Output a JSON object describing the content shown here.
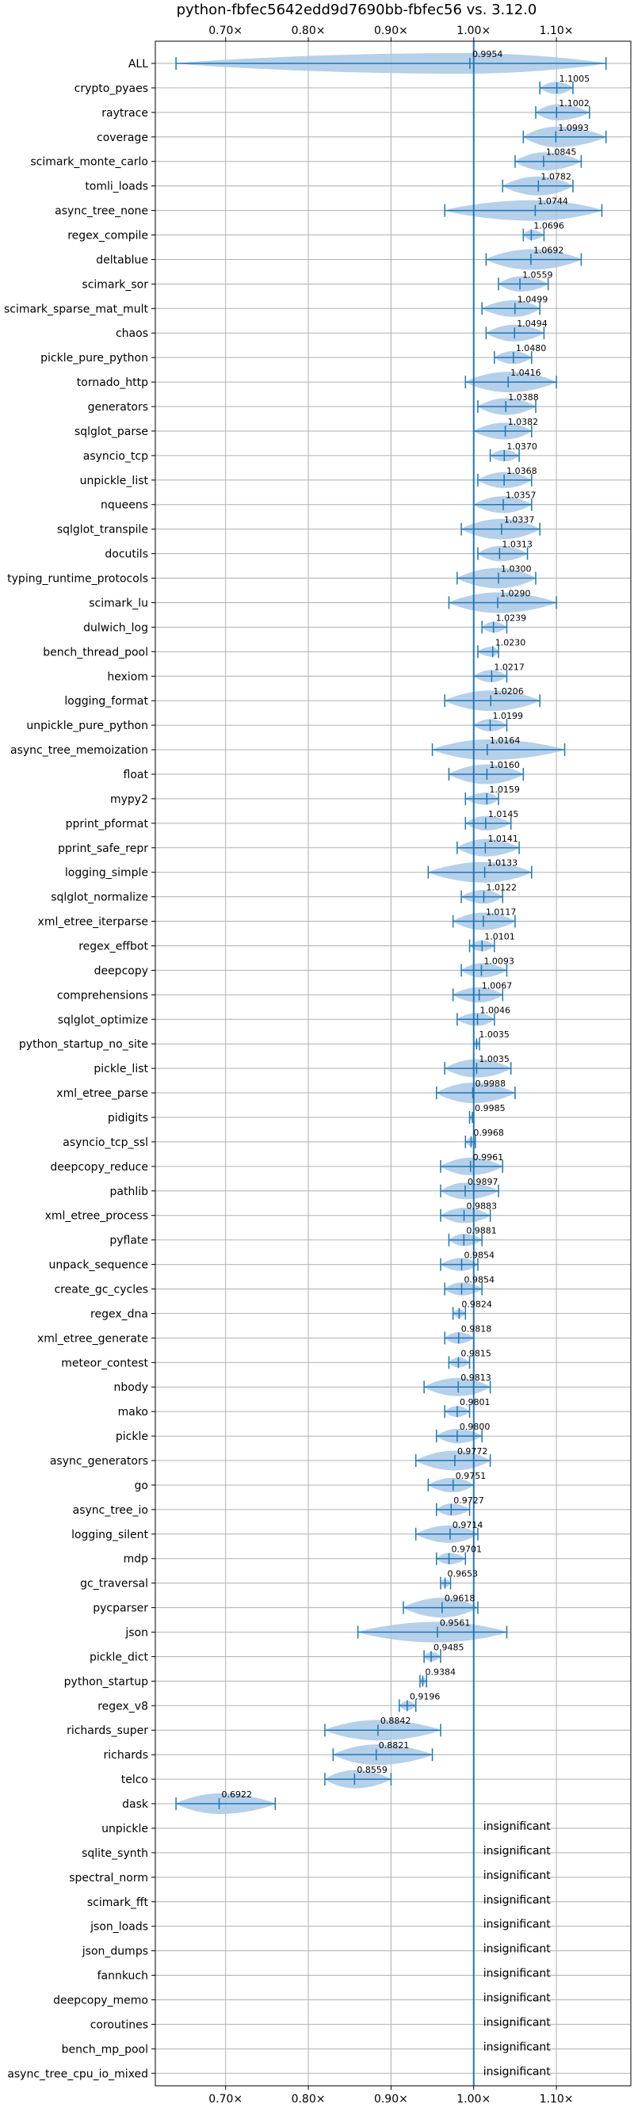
{
  "chart_data": {
    "type": "violin",
    "title": "python-fbfec5642edd9d7690bb-fbfec56 vs. 3.12.0",
    "xlim": [
      0.615,
      1.19
    ],
    "xticks": [
      0.7,
      0.8,
      0.9,
      1.0,
      1.1
    ],
    "xtick_labels": [
      "0.70×",
      "0.80×",
      "0.90×",
      "1.00×",
      "1.10×"
    ],
    "grid": true,
    "reference_line": 1.0,
    "colors": {
      "violin": "#a9c8e6",
      "line": "#1f77b4"
    },
    "insignificant_text": "insignificant",
    "benchmarks": [
      {
        "name": "ALL",
        "value": 0.9954,
        "label": "0.9954",
        "min": 0.64,
        "max": 1.16
      },
      {
        "name": "crypto_pyaes",
        "value": 1.1005,
        "label": "1.1005",
        "min": 1.08,
        "max": 1.12
      },
      {
        "name": "raytrace",
        "value": 1.1002,
        "label": "1.1002",
        "min": 1.075,
        "max": 1.14
      },
      {
        "name": "coverage",
        "value": 1.0993,
        "label": "1.0993",
        "min": 1.06,
        "max": 1.16
      },
      {
        "name": "scimark_monte_carlo",
        "value": 1.0845,
        "label": "1.0845",
        "min": 1.05,
        "max": 1.13
      },
      {
        "name": "tomli_loads",
        "value": 1.0782,
        "label": "1.0782",
        "min": 1.035,
        "max": 1.12
      },
      {
        "name": "async_tree_none",
        "value": 1.0744,
        "label": "1.0744",
        "min": 0.965,
        "max": 1.155
      },
      {
        "name": "regex_compile",
        "value": 1.0696,
        "label": "1.0696",
        "min": 1.06,
        "max": 1.085
      },
      {
        "name": "deltablue",
        "value": 1.0692,
        "label": "1.0692",
        "min": 1.015,
        "max": 1.13
      },
      {
        "name": "scimark_sor",
        "value": 1.0559,
        "label": "1.0559",
        "min": 1.03,
        "max": 1.09
      },
      {
        "name": "scimark_sparse_mat_mult",
        "value": 1.0499,
        "label": "1.0499",
        "min": 1.01,
        "max": 1.08
      },
      {
        "name": "chaos",
        "value": 1.0494,
        "label": "1.0494",
        "min": 1.015,
        "max": 1.085
      },
      {
        "name": "pickle_pure_python",
        "value": 1.048,
        "label": "1.0480",
        "min": 1.025,
        "max": 1.07
      },
      {
        "name": "tornado_http",
        "value": 1.0416,
        "label": "1.0416",
        "min": 0.99,
        "max": 1.1
      },
      {
        "name": "generators",
        "value": 1.0388,
        "label": "1.0388",
        "min": 1.005,
        "max": 1.075
      },
      {
        "name": "sqlglot_parse",
        "value": 1.0382,
        "label": "1.0382",
        "min": 1.0,
        "max": 1.07
      },
      {
        "name": "asyncio_tcp",
        "value": 1.037,
        "label": "1.0370",
        "min": 1.02,
        "max": 1.055
      },
      {
        "name": "unpickle_list",
        "value": 1.0368,
        "label": "1.0368",
        "min": 1.005,
        "max": 1.07
      },
      {
        "name": "nqueens",
        "value": 1.0357,
        "label": "1.0357",
        "min": 1.0,
        "max": 1.07
      },
      {
        "name": "sqlglot_transpile",
        "value": 1.0337,
        "label": "1.0337",
        "min": 0.985,
        "max": 1.08
      },
      {
        "name": "docutils",
        "value": 1.0313,
        "label": "1.0313",
        "min": 1.005,
        "max": 1.065
      },
      {
        "name": "typing_runtime_protocols",
        "value": 1.03,
        "label": "1.0300",
        "min": 0.98,
        "max": 1.075
      },
      {
        "name": "scimark_lu",
        "value": 1.029,
        "label": "1.0290",
        "min": 0.97,
        "max": 1.1
      },
      {
        "name": "dulwich_log",
        "value": 1.0239,
        "label": "1.0239",
        "min": 1.01,
        "max": 1.04
      },
      {
        "name": "bench_thread_pool",
        "value": 1.023,
        "label": "1.0230",
        "min": 1.005,
        "max": 1.03
      },
      {
        "name": "hexiom",
        "value": 1.0217,
        "label": "1.0217",
        "min": 1.0,
        "max": 1.04
      },
      {
        "name": "logging_format",
        "value": 1.0206,
        "label": "1.0206",
        "min": 0.965,
        "max": 1.08
      },
      {
        "name": "unpickle_pure_python",
        "value": 1.0199,
        "label": "1.0199",
        "min": 1.0,
        "max": 1.04
      },
      {
        "name": "async_tree_memoization",
        "value": 1.0164,
        "label": "1.0164",
        "min": 0.95,
        "max": 1.11
      },
      {
        "name": "float",
        "value": 1.016,
        "label": "1.0160",
        "min": 0.97,
        "max": 1.06
      },
      {
        "name": "mypy2",
        "value": 1.0159,
        "label": "1.0159",
        "min": 0.99,
        "max": 1.03
      },
      {
        "name": "pprint_pformat",
        "value": 1.0145,
        "label": "1.0145",
        "min": 0.99,
        "max": 1.045
      },
      {
        "name": "pprint_safe_repr",
        "value": 1.0141,
        "label": "1.0141",
        "min": 0.98,
        "max": 1.055
      },
      {
        "name": "logging_simple",
        "value": 1.0133,
        "label": "1.0133",
        "min": 0.945,
        "max": 1.07
      },
      {
        "name": "sqlglot_normalize",
        "value": 1.0122,
        "label": "1.0122",
        "min": 0.985,
        "max": 1.035
      },
      {
        "name": "xml_etree_iterparse",
        "value": 1.0117,
        "label": "1.0117",
        "min": 0.975,
        "max": 1.05
      },
      {
        "name": "regex_effbot",
        "value": 1.0101,
        "label": "1.0101",
        "min": 0.995,
        "max": 1.025
      },
      {
        "name": "deepcopy",
        "value": 1.0093,
        "label": "1.0093",
        "min": 0.985,
        "max": 1.04
      },
      {
        "name": "comprehensions",
        "value": 1.0067,
        "label": "1.0067",
        "min": 0.975,
        "max": 1.035
      },
      {
        "name": "sqlglot_optimize",
        "value": 1.0046,
        "label": "1.0046",
        "min": 0.98,
        "max": 1.025
      },
      {
        "name": "python_startup_no_site",
        "value": 1.0035,
        "label": "1.0035",
        "min": 1.0,
        "max": 1.007
      },
      {
        "name": "pickle_list",
        "value": 1.0035,
        "label": "1.0035",
        "min": 0.965,
        "max": 1.045
      },
      {
        "name": "xml_etree_parse",
        "value": 0.9988,
        "label": "0.9988",
        "min": 0.955,
        "max": 1.05
      },
      {
        "name": "pidigits",
        "value": 0.9985,
        "label": "0.9985",
        "min": 0.995,
        "max": 1.0
      },
      {
        "name": "asyncio_tcp_ssl",
        "value": 0.9968,
        "label": "0.9968",
        "min": 0.99,
        "max": 1.002
      },
      {
        "name": "deepcopy_reduce",
        "value": 0.9961,
        "label": "0.9961",
        "min": 0.96,
        "max": 1.035
      },
      {
        "name": "pathlib",
        "value": 0.9897,
        "label": "0.9897",
        "min": 0.96,
        "max": 1.03
      },
      {
        "name": "xml_etree_process",
        "value": 0.9883,
        "label": "0.9883",
        "min": 0.96,
        "max": 1.02
      },
      {
        "name": "pyflate",
        "value": 0.9881,
        "label": "0.9881",
        "min": 0.97,
        "max": 1.01
      },
      {
        "name": "unpack_sequence",
        "value": 0.9854,
        "label": "0.9854",
        "min": 0.96,
        "max": 1.005
      },
      {
        "name": "create_gc_cycles",
        "value": 0.9854,
        "label": "0.9854",
        "min": 0.965,
        "max": 1.01
      },
      {
        "name": "regex_dna",
        "value": 0.9824,
        "label": "0.9824",
        "min": 0.975,
        "max": 0.99
      },
      {
        "name": "xml_etree_generate",
        "value": 0.9818,
        "label": "0.9818",
        "min": 0.965,
        "max": 1.0
      },
      {
        "name": "meteor_contest",
        "value": 0.9815,
        "label": "0.9815",
        "min": 0.97,
        "max": 0.995
      },
      {
        "name": "nbody",
        "value": 0.9813,
        "label": "0.9813",
        "min": 0.94,
        "max": 1.02
      },
      {
        "name": "mako",
        "value": 0.9801,
        "label": "0.9801",
        "min": 0.965,
        "max": 0.995
      },
      {
        "name": "pickle",
        "value": 0.98,
        "label": "0.9800",
        "min": 0.955,
        "max": 1.01
      },
      {
        "name": "async_generators",
        "value": 0.9772,
        "label": "0.9772",
        "min": 0.93,
        "max": 1.02
      },
      {
        "name": "go",
        "value": 0.9751,
        "label": "0.9751",
        "min": 0.945,
        "max": 1.0
      },
      {
        "name": "async_tree_io",
        "value": 0.9727,
        "label": "0.9727",
        "min": 0.955,
        "max": 0.995
      },
      {
        "name": "logging_silent",
        "value": 0.9714,
        "label": "0.9714",
        "min": 0.93,
        "max": 1.005
      },
      {
        "name": "mdp",
        "value": 0.9701,
        "label": "0.9701",
        "min": 0.955,
        "max": 0.99
      },
      {
        "name": "gc_traversal",
        "value": 0.9653,
        "label": "0.9653",
        "min": 0.96,
        "max": 0.972
      },
      {
        "name": "pycparser",
        "value": 0.9618,
        "label": "0.9618",
        "min": 0.915,
        "max": 1.005
      },
      {
        "name": "json",
        "value": 0.9561,
        "label": "0.9561",
        "min": 0.86,
        "max": 1.04
      },
      {
        "name": "pickle_dict",
        "value": 0.9485,
        "label": "0.9485",
        "min": 0.94,
        "max": 0.96
      },
      {
        "name": "python_startup",
        "value": 0.9384,
        "label": "0.9384",
        "min": 0.935,
        "max": 0.943
      },
      {
        "name": "regex_v8",
        "value": 0.9196,
        "label": "0.9196",
        "min": 0.91,
        "max": 0.93
      },
      {
        "name": "richards_super",
        "value": 0.8842,
        "label": "0.8842",
        "min": 0.82,
        "max": 0.96
      },
      {
        "name": "richards",
        "value": 0.8821,
        "label": "0.8821",
        "min": 0.83,
        "max": 0.95
      },
      {
        "name": "telco",
        "value": 0.8559,
        "label": "0.8559",
        "min": 0.82,
        "max": 0.9
      },
      {
        "name": "dask",
        "value": 0.6922,
        "label": "0.6922",
        "min": 0.64,
        "max": 0.76
      },
      {
        "name": "unpickle",
        "insignificant": true
      },
      {
        "name": "sqlite_synth",
        "insignificant": true
      },
      {
        "name": "spectral_norm",
        "insignificant": true
      },
      {
        "name": "scimark_fft",
        "insignificant": true
      },
      {
        "name": "json_loads",
        "insignificant": true
      },
      {
        "name": "json_dumps",
        "insignificant": true
      },
      {
        "name": "fannkuch",
        "insignificant": true
      },
      {
        "name": "deepcopy_memo",
        "insignificant": true
      },
      {
        "name": "coroutines",
        "insignificant": true
      },
      {
        "name": "bench_mp_pool",
        "insignificant": true
      },
      {
        "name": "async_tree_cpu_io_mixed",
        "insignificant": true
      }
    ]
  }
}
